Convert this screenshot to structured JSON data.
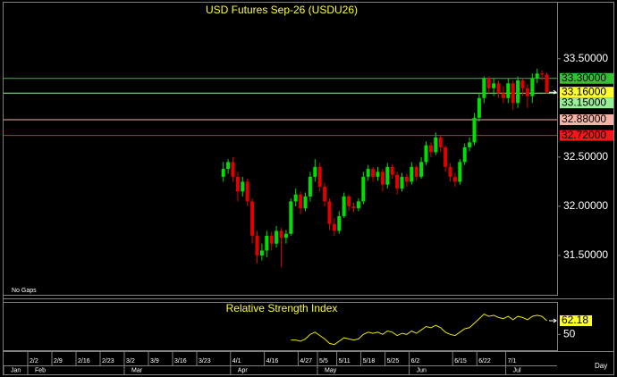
{
  "chart_data": {
    "type": "candlestick",
    "title": "USD Futures Sep-26 (USDU26)",
    "annotation": "No Gaps",
    "x_unit": "Day",
    "categories": [
      null,
      null,
      null,
      null,
      null,
      "2/2",
      null,
      null,
      null,
      null,
      "2/9",
      null,
      null,
      null,
      null,
      "2/16",
      null,
      null,
      null,
      null,
      "2/23",
      null,
      null,
      null,
      null,
      "3/2",
      null,
      null,
      null,
      null,
      "3/9",
      null,
      null,
      null,
      null,
      "3/16",
      null,
      null,
      null,
      null,
      "3/23",
      null,
      null,
      null,
      null,
      null,
      null,
      "4/1",
      null,
      null,
      null,
      null,
      null,
      null,
      "4/16",
      null,
      null,
      null,
      null,
      null,
      null,
      "4/27",
      null,
      null,
      null,
      "5/5",
      null,
      null,
      null,
      "5/11",
      null,
      null,
      null,
      null,
      "5/18",
      null,
      null,
      null,
      null,
      "5/25",
      null,
      null,
      null,
      null,
      "6/2",
      null,
      null,
      null,
      null,
      null,
      null,
      null,
      null,
      "6/15",
      null,
      null,
      null,
      null,
      "6/22",
      null,
      null,
      null,
      null,
      null,
      "7/1",
      null,
      null,
      null,
      null,
      null,
      null,
      null,
      null,
      null,
      null
    ],
    "months": [
      "Jan",
      null,
      null,
      null,
      null,
      "Feb",
      null,
      null,
      null,
      null,
      null,
      null,
      null,
      null,
      null,
      null,
      null,
      null,
      null,
      null,
      null,
      null,
      null,
      null,
      null,
      "Mar",
      null,
      null,
      null,
      null,
      null,
      null,
      null,
      null,
      null,
      null,
      null,
      null,
      null,
      null,
      null,
      null,
      null,
      null,
      null,
      null,
      null,
      "Apr",
      null,
      null,
      null,
      null,
      null,
      null,
      null,
      null,
      null,
      null,
      null,
      null,
      null,
      null,
      null,
      null,
      null,
      "May",
      null,
      null,
      null,
      null,
      null,
      null,
      null,
      null,
      null,
      null,
      null,
      null,
      null,
      null,
      null,
      null,
      null,
      null,
      "Jun",
      null,
      null,
      null,
      null,
      null,
      null,
      null,
      null,
      null,
      null,
      null,
      null,
      null,
      null,
      null,
      null,
      null,
      null,
      null,
      "Jul",
      null,
      null,
      null,
      null,
      null,
      null,
      null,
      null,
      null,
      null
    ],
    "open": [
      null,
      null,
      null,
      null,
      null,
      null,
      null,
      null,
      null,
      null,
      null,
      null,
      null,
      null,
      null,
      null,
      null,
      null,
      null,
      null,
      null,
      null,
      null,
      null,
      null,
      null,
      null,
      null,
      null,
      null,
      null,
      null,
      null,
      null,
      null,
      null,
      null,
      null,
      null,
      null,
      null,
      null,
      null,
      null,
      null,
      32.3,
      32.38,
      32.45,
      32.3,
      32.15,
      32.25,
      32.05,
      31.7,
      31.5,
      31.55,
      31.7,
      31.62,
      31.75,
      31.68,
      31.72,
      32.05,
      32.12,
      31.98,
      32.1,
      32.3,
      32.4,
      32.2,
      32.05,
      31.82,
      31.75,
      31.9,
      32.1,
      32.0,
      31.98,
      32.05,
      32.3,
      32.38,
      32.3,
      32.35,
      32.22,
      32.4,
      32.32,
      32.18,
      32.3,
      32.25,
      32.4,
      32.3,
      32.45,
      32.62,
      32.55,
      32.7,
      32.6,
      32.4,
      32.3,
      32.25,
      32.45,
      32.6,
      32.65,
      32.9,
      33.1,
      33.3,
      33.2,
      33.25,
      33.15,
      33.1,
      33.25,
      33.05,
      33.28,
      33.2,
      33.12,
      33.3,
      33.35,
      33.34,
      null,
      null
    ],
    "high": [
      null,
      null,
      null,
      null,
      null,
      null,
      null,
      null,
      null,
      null,
      null,
      null,
      null,
      null,
      null,
      null,
      null,
      null,
      null,
      null,
      null,
      null,
      null,
      null,
      null,
      null,
      null,
      null,
      null,
      null,
      null,
      null,
      null,
      null,
      null,
      null,
      null,
      null,
      null,
      null,
      null,
      null,
      null,
      null,
      null,
      32.45,
      32.48,
      32.5,
      32.35,
      32.3,
      32.28,
      32.08,
      31.75,
      31.62,
      31.75,
      31.74,
      31.8,
      31.78,
      31.76,
      32.08,
      32.18,
      32.15,
      32.14,
      32.35,
      32.48,
      32.44,
      32.24,
      32.08,
      31.88,
      31.95,
      32.14,
      32.12,
      32.04,
      32.08,
      32.35,
      32.42,
      32.4,
      32.4,
      32.38,
      32.44,
      32.43,
      32.35,
      32.34,
      32.33,
      32.45,
      32.42,
      32.5,
      32.66,
      32.65,
      32.75,
      32.72,
      32.62,
      32.44,
      32.34,
      32.48,
      32.64,
      32.7,
      32.95,
      33.15,
      33.32,
      33.32,
      33.3,
      33.28,
      33.22,
      33.3,
      33.28,
      33.32,
      33.3,
      33.24,
      33.35,
      33.4,
      33.38,
      33.36,
      null,
      null
    ],
    "low": [
      null,
      null,
      null,
      null,
      null,
      null,
      null,
      null,
      null,
      null,
      null,
      null,
      null,
      null,
      null,
      null,
      null,
      null,
      null,
      null,
      null,
      null,
      null,
      null,
      null,
      null,
      null,
      null,
      null,
      null,
      null,
      null,
      null,
      null,
      null,
      null,
      null,
      null,
      null,
      null,
      null,
      null,
      null,
      null,
      null,
      32.25,
      32.33,
      32.25,
      32.05,
      32.1,
      32.0,
      31.62,
      31.42,
      31.45,
      31.48,
      31.55,
      31.58,
      31.38,
      31.62,
      31.7,
      32.0,
      31.92,
      31.95,
      32.05,
      32.25,
      32.15,
      32.0,
      31.76,
      31.7,
      31.72,
      31.88,
      31.95,
      31.94,
      31.95,
      32.02,
      32.26,
      32.25,
      32.26,
      32.15,
      32.18,
      32.28,
      32.12,
      32.15,
      32.2,
      32.22,
      32.26,
      32.28,
      32.42,
      32.5,
      32.52,
      32.55,
      32.35,
      32.25,
      32.2,
      32.22,
      32.42,
      32.56,
      32.62,
      32.86,
      33.05,
      33.15,
      33.12,
      33.1,
      33.05,
      33.05,
      32.98,
      33.0,
      33.12,
      33.0,
      33.05,
      33.25,
      33.28,
      33.14,
      null,
      null
    ],
    "close": [
      null,
      null,
      null,
      null,
      null,
      null,
      null,
      null,
      null,
      null,
      null,
      null,
      null,
      null,
      null,
      null,
      null,
      null,
      null,
      null,
      null,
      null,
      null,
      null,
      null,
      null,
      null,
      null,
      null,
      null,
      null,
      null,
      null,
      null,
      null,
      null,
      null,
      null,
      null,
      null,
      null,
      null,
      null,
      null,
      null,
      32.38,
      32.45,
      32.3,
      32.15,
      32.25,
      32.05,
      31.7,
      31.5,
      31.55,
      31.7,
      31.62,
      31.75,
      31.68,
      31.72,
      32.05,
      32.12,
      31.98,
      32.1,
      32.3,
      32.4,
      32.2,
      32.05,
      31.82,
      31.75,
      31.9,
      32.1,
      32.0,
      31.98,
      32.05,
      32.3,
      32.38,
      32.3,
      32.35,
      32.22,
      32.4,
      32.32,
      32.18,
      32.3,
      32.25,
      32.4,
      32.3,
      32.45,
      32.62,
      32.55,
      32.7,
      32.6,
      32.4,
      32.3,
      32.25,
      32.45,
      32.6,
      32.65,
      32.9,
      33.1,
      33.3,
      33.2,
      33.25,
      33.15,
      33.1,
      33.25,
      33.05,
      33.28,
      33.2,
      33.12,
      33.3,
      33.35,
      33.34,
      33.16,
      null,
      null
    ],
    "up_color": "#00e000",
    "down_color": "#e00000",
    "ylim": [
      31.1,
      34.07
    ],
    "yticks": [
      {
        "value": 31.5,
        "label": "31.50000"
      },
      {
        "value": 32,
        "label": "32.00000"
      },
      {
        "value": 32.5,
        "label": "32.50000"
      },
      {
        "value": 33.5,
        "label": "33.50000"
      }
    ],
    "levels": [
      {
        "value": 33.3,
        "label": "33.30000",
        "color": "#33c133"
      },
      {
        "value": 33.15,
        "label": "33.15000",
        "color": "#98f098"
      },
      {
        "value": 32.88,
        "label": "32.88000",
        "color": "#f4b3a6"
      },
      {
        "value": 32.72,
        "label": "32.72000",
        "color": "#f01818"
      }
    ],
    "last_price": {
      "value": 33.16,
      "label": "33.16000",
      "color": "#ffff33"
    },
    "rsi": {
      "type": "line",
      "title": "Relative Strength Index",
      "color": "#e8e800",
      "ylim": [
        36,
        78
      ],
      "yticks": [
        50
      ],
      "values": [
        null,
        null,
        null,
        null,
        null,
        null,
        null,
        null,
        null,
        null,
        null,
        null,
        null,
        null,
        null,
        null,
        null,
        null,
        null,
        null,
        null,
        null,
        null,
        null,
        null,
        null,
        null,
        null,
        null,
        null,
        null,
        null,
        null,
        null,
        null,
        null,
        null,
        null,
        null,
        null,
        null,
        null,
        null,
        null,
        null,
        null,
        null,
        null,
        null,
        null,
        null,
        null,
        null,
        null,
        null,
        null,
        null,
        null,
        null,
        45,
        45,
        44,
        46,
        50,
        52,
        49,
        46,
        42,
        41,
        44,
        47,
        46,
        45,
        46,
        50,
        52,
        51,
        52,
        50,
        53,
        52,
        49,
        51,
        50,
        53,
        51,
        54,
        57,
        56,
        58,
        56,
        52,
        50,
        49,
        52,
        55,
        56,
        60,
        64,
        68,
        66,
        67,
        65,
        64,
        66,
        63,
        66,
        65,
        63,
        66,
        67,
        66,
        62.18,
        null,
        null
      ]
    }
  }
}
